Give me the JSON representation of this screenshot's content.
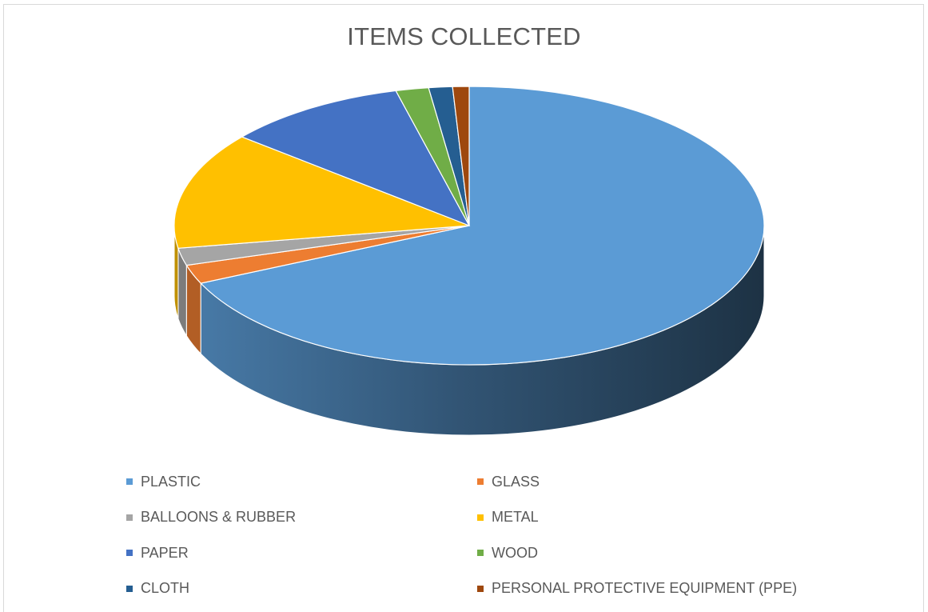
{
  "chart_data": {
    "type": "pie",
    "title": "ITEMS COLLECTED",
    "legend_position": "bottom",
    "style": "3d",
    "slices": [
      {
        "label": "PLASTIC",
        "value": 68.2,
        "color": "#5b9bd5"
      },
      {
        "label": "GLASS",
        "value": 2.2,
        "color": "#ed7d31"
      },
      {
        "label": "BALLOONS & RUBBER",
        "value": 2.0,
        "color": "#a5a5a5"
      },
      {
        "label": "METAL",
        "value": 13.6,
        "color": "#ffc000"
      },
      {
        "label": "PAPER",
        "value": 10.0,
        "color": "#4472c4"
      },
      {
        "label": "WOOD",
        "value": 1.8,
        "color": "#70ad47"
      },
      {
        "label": "CLOTH",
        "value": 1.3,
        "color": "#255e91"
      },
      {
        "label": "PERSONAL PROTECTIVE EQUIPMENT (PPE)",
        "value": 0.9,
        "color": "#9e480e"
      }
    ]
  }
}
